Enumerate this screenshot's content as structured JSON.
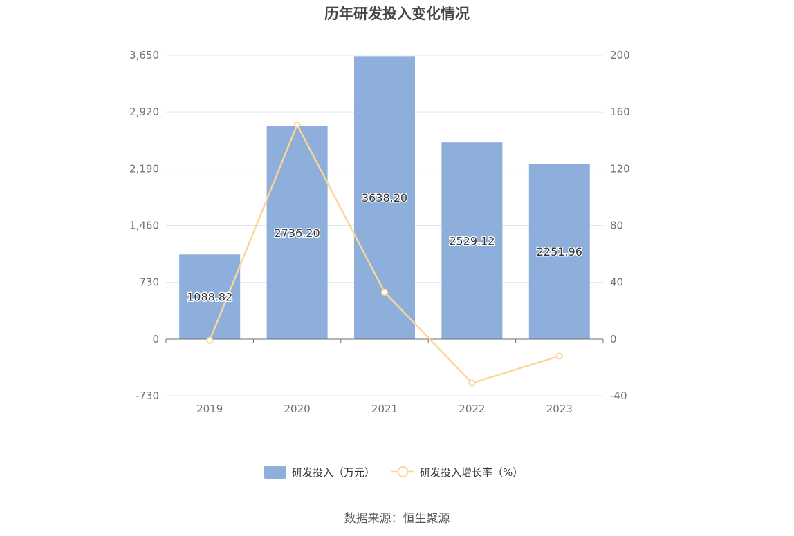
{
  "chart_data": {
    "type": "bar",
    "title": "历年研发投入变化情况",
    "categories": [
      "2019",
      "2020",
      "2021",
      "2022",
      "2023"
    ],
    "series": [
      {
        "name": "研发投入（万元）",
        "type": "bar",
        "axis": "left",
        "values": [
          1088.82,
          2736.2,
          3638.2,
          2529.12,
          2251.96
        ],
        "labels": [
          "1088.82",
          "2736.20",
          "3638.20",
          "2529.12",
          "2251.96"
        ]
      },
      {
        "name": "研发投入增长率（%）",
        "type": "line",
        "axis": "right",
        "values": [
          -1,
          151,
          33,
          -31,
          -12
        ]
      }
    ],
    "y_left": {
      "min": -730,
      "max": 3650,
      "ticks": [
        "-730",
        "0",
        "730",
        "1,460",
        "2,190",
        "2,920",
        "3,650"
      ]
    },
    "y_right": {
      "min": -40,
      "max": 200,
      "ticks": [
        "-40",
        "0",
        "40",
        "80",
        "120",
        "160",
        "200"
      ]
    },
    "grid": true,
    "legend_position": "bottom",
    "colors": {
      "bar": "#8eaedb",
      "line": "#fad797",
      "grid": "#e0e6f1",
      "axis": "#6e7079"
    }
  },
  "source_note": "数据来源：恒生聚源"
}
